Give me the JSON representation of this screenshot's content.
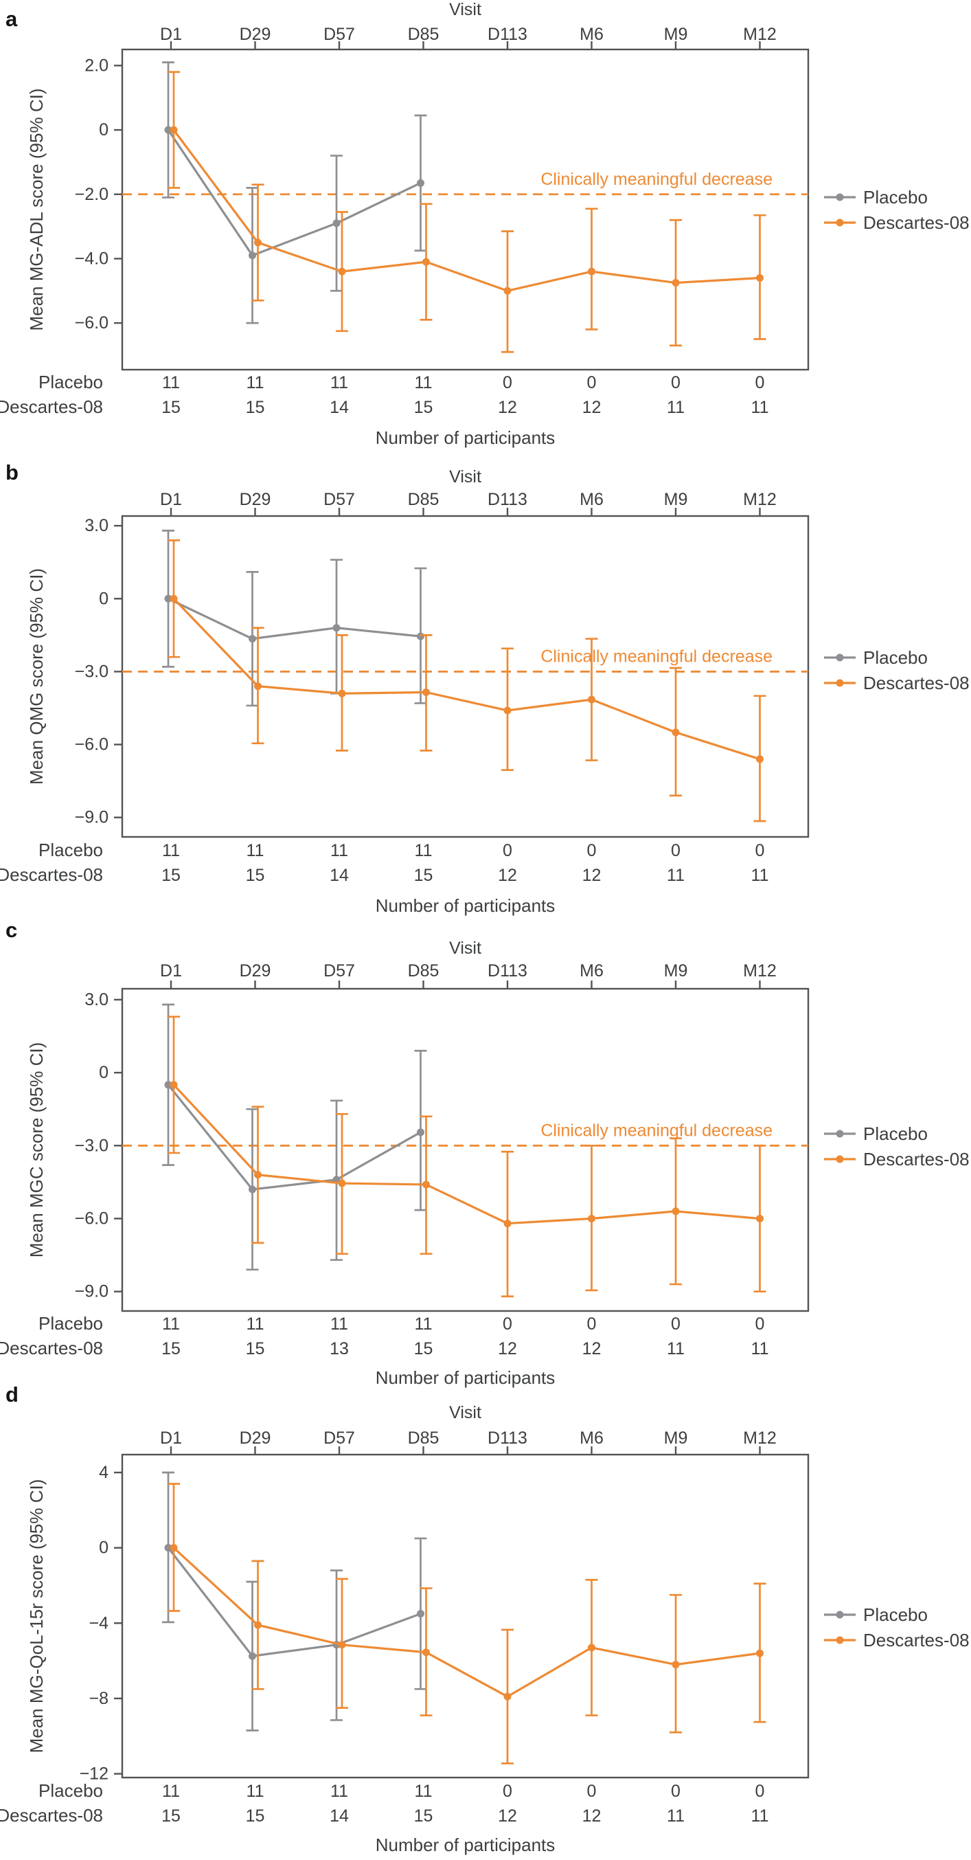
{
  "figure": {
    "x_axis_title": "Visit",
    "visits": [
      "D1",
      "D29",
      "D57",
      "D85",
      "D113",
      "M6",
      "M9",
      "M12"
    ],
    "counts_title": "Number of participants",
    "threshold_label": "Clinically meaningful decrease",
    "legend": {
      "items": [
        "Placebo",
        "Descartes-08"
      ]
    },
    "colors": {
      "placebo": "#8D8F92",
      "descartes": "#EE8A33",
      "threshold": "#EE8A33",
      "axis": "#515356",
      "text": "#3C3E40",
      "panel_letter": "#141414"
    }
  },
  "chart_data": [
    {
      "panel_label": "a",
      "type": "line",
      "ylabel": "Mean MG-ADL score (95% CI)",
      "xlabel": "Visit",
      "x": [
        "D1",
        "D29",
        "D57",
        "D85",
        "D113",
        "M6",
        "M9",
        "M12"
      ],
      "ylim": [
        -7.45,
        2.5
      ],
      "yticks": [
        {
          "v": 2,
          "label": "2.0"
        },
        {
          "v": 0,
          "label": "0"
        },
        {
          "v": -2,
          "label": "−2.0"
        },
        {
          "v": -4,
          "label": "−4.0"
        },
        {
          "v": -6,
          "label": "−6.0"
        }
      ],
      "threshold": -2.0,
      "series": [
        {
          "name": "Placebo",
          "color_key": "placebo",
          "values": [
            0,
            -3.9,
            -2.9,
            -1.65
          ],
          "ci_low": [
            -2.1,
            -6.0,
            -5.0,
            -3.75
          ],
          "ci_high": [
            2.1,
            -1.8,
            -0.8,
            0.45
          ]
        },
        {
          "name": "Descartes-08",
          "color_key": "descartes",
          "values": [
            0,
            -3.5,
            -4.4,
            -4.1,
            -5.0,
            -4.4,
            -4.75,
            -4.6
          ],
          "ci_low": [
            -1.8,
            -5.3,
            -6.25,
            -5.9,
            -6.9,
            -6.2,
            -6.7,
            -6.5
          ],
          "ci_high": [
            1.8,
            -1.7,
            -2.55,
            -2.3,
            -3.15,
            -2.45,
            -2.8,
            -2.65
          ]
        }
      ],
      "participants": [
        {
          "label": "Placebo",
          "counts": [
            "11",
            "11",
            "11",
            "11",
            "0",
            "0",
            "0",
            "0"
          ]
        },
        {
          "label": "Descartes-08",
          "counts": [
            "15",
            "15",
            "14",
            "15",
            "12",
            "12",
            "11",
            "11"
          ]
        }
      ]
    },
    {
      "panel_label": "b",
      "type": "line",
      "ylabel": "Mean QMG score (95% CI)",
      "xlabel": "Visit",
      "x": [
        "D1",
        "D29",
        "D57",
        "D85",
        "D113",
        "M6",
        "M9",
        "M12"
      ],
      "ylim": [
        -9.8,
        3.4
      ],
      "yticks": [
        {
          "v": 3,
          "label": "3.0"
        },
        {
          "v": 0,
          "label": "0"
        },
        {
          "v": -3,
          "label": "−3.0"
        },
        {
          "v": -6,
          "label": "−6.0"
        },
        {
          "v": -9,
          "label": "−9.0"
        }
      ],
      "threshold": -3.0,
      "series": [
        {
          "name": "Placebo",
          "color_key": "placebo",
          "values": [
            0,
            -1.65,
            -1.2,
            -1.55
          ],
          "ci_low": [
            -2.8,
            -4.4,
            -3.9,
            -4.3
          ],
          "ci_high": [
            2.8,
            1.1,
            1.6,
            1.25
          ]
        },
        {
          "name": "Descartes-08",
          "color_key": "descartes",
          "values": [
            0,
            -3.6,
            -3.9,
            -3.85,
            -4.6,
            -4.15,
            -5.5,
            -6.6
          ],
          "ci_low": [
            -2.4,
            -5.95,
            -6.25,
            -6.25,
            -7.05,
            -6.65,
            -8.1,
            -9.15
          ],
          "ci_high": [
            2.4,
            -1.2,
            -1.5,
            -1.5,
            -2.05,
            -1.65,
            -2.85,
            -4.0
          ]
        }
      ],
      "participants": [
        {
          "label": "Placebo",
          "counts": [
            "11",
            "11",
            "11",
            "11",
            "0",
            "0",
            "0",
            "0"
          ]
        },
        {
          "label": "Descartes-08",
          "counts": [
            "15",
            "15",
            "14",
            "15",
            "12",
            "12",
            "11",
            "11"
          ]
        }
      ]
    },
    {
      "panel_label": "c",
      "type": "line",
      "ylabel": "Mean MGC score (95% CI)",
      "xlabel": "Visit",
      "x": [
        "D1",
        "D29",
        "D57",
        "D85",
        "D113",
        "M6",
        "M9",
        "M12"
      ],
      "ylim": [
        -9.8,
        3.45
      ],
      "yticks": [
        {
          "v": 3,
          "label": "3.0"
        },
        {
          "v": 0,
          "label": "0"
        },
        {
          "v": -3,
          "label": "−3.0"
        },
        {
          "v": -6,
          "label": "−6.0"
        },
        {
          "v": -9,
          "label": "−9.0"
        }
      ],
      "threshold": -3.0,
      "series": [
        {
          "name": "Placebo",
          "color_key": "placebo",
          "values": [
            -0.5,
            -4.8,
            -4.4,
            -2.45
          ],
          "ci_low": [
            -3.8,
            -8.1,
            -7.7,
            -5.65
          ],
          "ci_high": [
            2.8,
            -1.5,
            -1.15,
            0.9
          ]
        },
        {
          "name": "Descartes-08",
          "color_key": "descartes",
          "values": [
            -0.5,
            -4.2,
            -4.55,
            -4.6,
            -6.2,
            -6.0,
            -5.7,
            -6.0
          ],
          "ci_low": [
            -3.3,
            -7.0,
            -7.45,
            -7.45,
            -9.2,
            -8.95,
            -8.7,
            -9.0
          ],
          "ci_high": [
            2.3,
            -1.4,
            -1.7,
            -1.8,
            -3.25,
            -3.0,
            -2.7,
            -3.0
          ]
        }
      ],
      "participants": [
        {
          "label": "Placebo",
          "counts": [
            "11",
            "11",
            "11",
            "11",
            "0",
            "0",
            "0",
            "0"
          ]
        },
        {
          "label": "Descartes-08",
          "counts": [
            "15",
            "15",
            "13",
            "15",
            "12",
            "12",
            "11",
            "11"
          ]
        }
      ]
    },
    {
      "panel_label": "d",
      "type": "line",
      "ylabel": "Mean MG-QoL-15r score (95% CI)",
      "xlabel": "Visit",
      "x": [
        "D1",
        "D29",
        "D57",
        "D85",
        "D113",
        "M6",
        "M9",
        "M12"
      ],
      "ylim": [
        -12.2,
        4.95
      ],
      "yticks": [
        {
          "v": 4,
          "label": "4"
        },
        {
          "v": 0,
          "label": "0"
        },
        {
          "v": -4,
          "label": "−4"
        },
        {
          "v": -8,
          "label": "−8"
        },
        {
          "v": -12,
          "label": "−12"
        }
      ],
      "threshold": null,
      "series": [
        {
          "name": "Placebo",
          "color_key": "placebo",
          "values": [
            0,
            -5.75,
            -5.15,
            -3.5
          ],
          "ci_low": [
            -3.95,
            -9.7,
            -9.15,
            -7.5
          ],
          "ci_high": [
            4.0,
            -1.8,
            -1.2,
            0.5
          ]
        },
        {
          "name": "Descartes-08",
          "color_key": "descartes",
          "values": [
            0,
            -4.1,
            -5.15,
            -5.55,
            -7.9,
            -5.3,
            -6.2,
            -5.6
          ],
          "ci_low": [
            -3.35,
            -7.5,
            -8.5,
            -8.9,
            -11.45,
            -8.9,
            -9.8,
            -9.25
          ],
          "ci_high": [
            3.4,
            -0.7,
            -1.65,
            -2.15,
            -4.35,
            -1.7,
            -2.5,
            -1.9
          ]
        }
      ],
      "participants": [
        {
          "label": "Placebo",
          "counts": [
            "11",
            "11",
            "11",
            "11",
            "0",
            "0",
            "0",
            "0"
          ]
        },
        {
          "label": "Descartes-08",
          "counts": [
            "15",
            "15",
            "14",
            "15",
            "12",
            "12",
            "11",
            "11"
          ]
        }
      ]
    }
  ]
}
